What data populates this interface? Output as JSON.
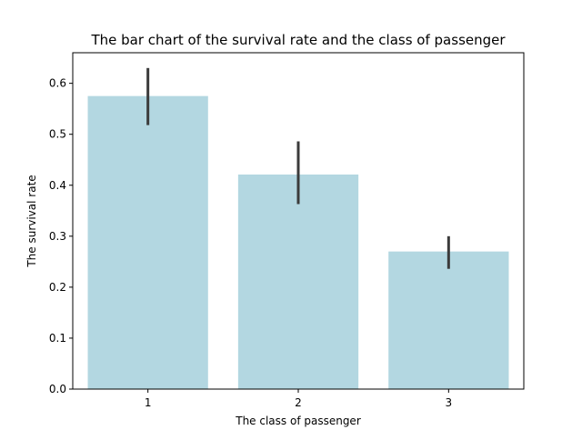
{
  "chart_data": {
    "type": "bar",
    "title": "The bar chart of the survival rate and the class of passenger",
    "xlabel": "The class of passenger",
    "ylabel": "The survival rate",
    "categories": [
      "1",
      "2",
      "3"
    ],
    "values": [
      0.575,
      0.421,
      0.27
    ],
    "error_bars": [
      {
        "low": 0.518,
        "high": 0.63
      },
      {
        "low": 0.363,
        "high": 0.486
      },
      {
        "low": 0.236,
        "high": 0.3
      }
    ],
    "ylim": [
      0,
      0.66
    ],
    "yticks": [
      "0.0",
      "0.1",
      "0.2",
      "0.3",
      "0.4",
      "0.5",
      "0.6"
    ],
    "grid": false,
    "bar_color": "#b3d7e1",
    "error_color": "#3b3b3b"
  }
}
